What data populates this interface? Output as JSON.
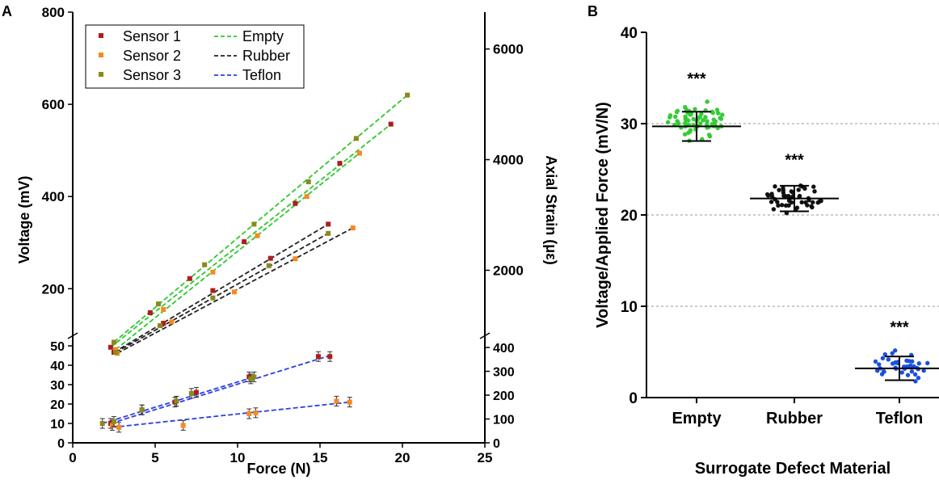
{
  "panels": {
    "a_label": "A",
    "b_label": "B"
  },
  "colors": {
    "sensor1": "#b01c1c",
    "sensor2": "#f6891f",
    "sensor3": "#8a8a1c",
    "empty": "#2ec82e",
    "rubber": "#222222",
    "teflon": "#2a3fe6",
    "scatter_empty": "#33cc33",
    "scatter_rubber": "#111111",
    "scatter_teflon": "#1a4fe0"
  },
  "chart_data": [
    {
      "type": "scatter",
      "panel": "A",
      "xlabel": "Force (N)",
      "ylabel": "Voltage (mV)",
      "y2label": "Axial Strain (με)",
      "xlim": [
        0,
        25
      ],
      "x_ticks": [
        "0",
        "5",
        "10",
        "15",
        "20",
        "25"
      ],
      "upper": {
        "ylim": [
          55,
          800
        ],
        "y_ticks": [
          "200",
          "400",
          "600",
          "800"
        ],
        "y2_ticks": [
          "2000",
          "4000",
          "6000"
        ]
      },
      "lower": {
        "ylim": [
          0,
          50
        ],
        "y_ticks": [
          "0",
          "10",
          "20",
          "30",
          "40",
          "50"
        ],
        "y2_ticks": [
          "0",
          "100",
          "200",
          "300",
          "400"
        ]
      },
      "legend": {
        "placement": "top-left",
        "markers": [
          "Sensor 1",
          "Sensor 2",
          "Sensor 3"
        ],
        "lines": [
          "Empty",
          "Rubber",
          "Teflon"
        ]
      },
      "series": [
        {
          "name": "Sensor 1",
          "surrogate": "Empty",
          "x": [
            2.3,
            4.7,
            7.1,
            10.4,
            13.5,
            16.2,
            19.3
          ],
          "y": [
            73,
            148,
            222,
            302,
            385,
            472,
            557
          ]
        },
        {
          "name": "Sensor 2",
          "surrogate": "Empty",
          "x": [
            2.6,
            5.5,
            8.5,
            11.2,
            14.2,
            17.4
          ],
          "y": [
            68,
            155,
            236,
            315,
            400,
            494
          ]
        },
        {
          "name": "Sensor 3",
          "surrogate": "Empty",
          "x": [
            2.5,
            5.2,
            8.0,
            11.0,
            14.3,
            17.2,
            20.3
          ],
          "y": [
            84,
            167,
            252,
            340,
            432,
            526,
            620
          ]
        },
        {
          "name": "Sensor 1",
          "surrogate": "Rubber",
          "x": [
            2.5,
            5.5,
            8.5,
            12.0,
            15.5
          ],
          "y": [
            62,
            125,
            196,
            266,
            340
          ]
        },
        {
          "name": "Sensor 2",
          "surrogate": "Rubber",
          "x": [
            2.7,
            6.0,
            9.8,
            13.5,
            17.0
          ],
          "y": [
            60,
            128,
            193,
            265,
            332
          ]
        },
        {
          "name": "Sensor 3",
          "surrogate": "Rubber",
          "x": [
            2.6,
            5.3,
            8.5,
            11.9,
            15.5
          ],
          "y": [
            62,
            120,
            180,
            250,
            320
          ]
        },
        {
          "name": "Sensor 1",
          "surrogate": "Teflon",
          "x": [
            2.3,
            4.2,
            6.2,
            7.5,
            10.7,
            14.9,
            15.6
          ],
          "y": [
            10,
            17,
            21,
            26,
            34,
            44.5,
            44.5
          ]
        },
        {
          "name": "Sensor 2",
          "surrogate": "Teflon",
          "x": [
            2.4,
            2.8,
            6.7,
            10.7,
            11.1,
            16.0,
            16.8
          ],
          "y": [
            9,
            8,
            9,
            15,
            15.5,
            21.5,
            21
          ]
        },
        {
          "name": "Sensor 3",
          "surrogate": "Teflon",
          "x": [
            1.8,
            2.5,
            4.2,
            6.3,
            7.2,
            10.8,
            11.0
          ],
          "y": [
            10,
            11,
            17,
            21.5,
            25.5,
            33,
            34
          ]
        }
      ],
      "fit_lines": [
        {
          "name": "Empty",
          "x": [
            2.3,
            19.3
          ],
          "y": [
            73,
            557
          ]
        },
        {
          "name": "Empty",
          "x": [
            2.6,
            17.4
          ],
          "y": [
            68,
            494
          ]
        },
        {
          "name": "Empty",
          "x": [
            2.5,
            20.3
          ],
          "y": [
            84,
            620
          ]
        },
        {
          "name": "Rubber",
          "x": [
            2.5,
            15.5
          ],
          "y": [
            62,
            340
          ]
        },
        {
          "name": "Rubber",
          "x": [
            2.7,
            17.0
          ],
          "y": [
            60,
            332
          ]
        },
        {
          "name": "Rubber",
          "x": [
            2.6,
            15.5
          ],
          "y": [
            62,
            320
          ]
        },
        {
          "name": "Teflon",
          "x": [
            2.3,
            15.6
          ],
          "y": [
            10,
            45
          ]
        },
        {
          "name": "Teflon",
          "x": [
            2.4,
            16.8
          ],
          "y": [
            8,
            21
          ]
        },
        {
          "name": "Teflon",
          "x": [
            1.8,
            11.0
          ],
          "y": [
            10,
            34
          ]
        }
      ]
    },
    {
      "type": "scatter",
      "panel": "B",
      "xlabel": "Surrogate Defect Material",
      "ylabel": "Voltage/Applied Force (mV/N)",
      "ylim": [
        0,
        40
      ],
      "y_ticks": [
        "0",
        "10",
        "20",
        "30",
        "40"
      ],
      "grid": "horizontal dashed",
      "categories": [
        "Empty",
        "Rubber",
        "Teflon"
      ],
      "series": [
        {
          "name": "Empty",
          "mean": 29.7,
          "sd": 1.6,
          "n": 70,
          "min": 27.8,
          "max": 33.1,
          "annotation": "***"
        },
        {
          "name": "Rubber",
          "mean": 21.8,
          "sd": 1.4,
          "n": 48,
          "min": 19.5,
          "max": 24.2,
          "annotation": "***"
        },
        {
          "name": "Teflon",
          "mean": 3.2,
          "sd": 1.3,
          "n": 40,
          "min": 1.2,
          "max": 5.9,
          "annotation": "***"
        }
      ]
    }
  ]
}
